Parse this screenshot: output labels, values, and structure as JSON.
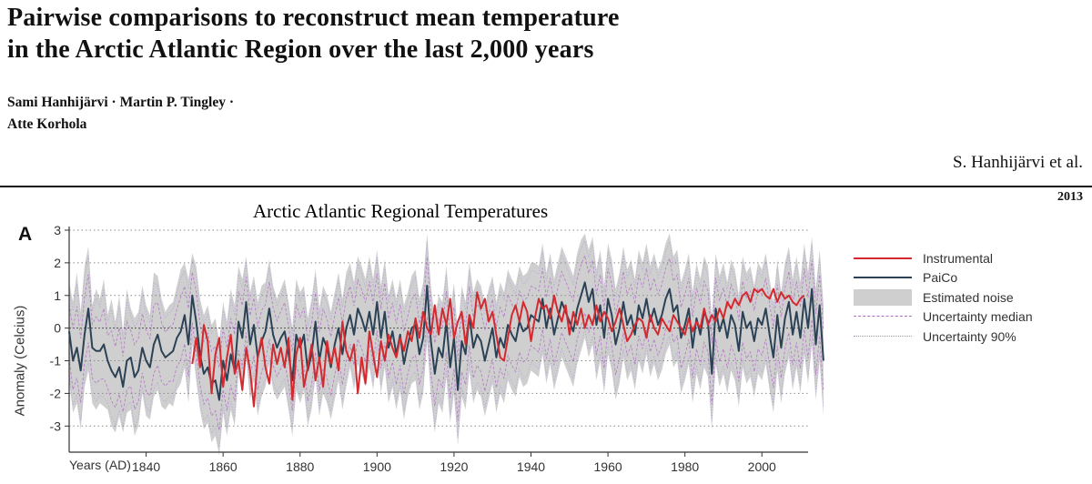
{
  "paper": {
    "title_line1": "Pairwise comparisons to reconstruct mean temperature",
    "title_line2": "in the Arctic Atlantic Region over the last 2,000 years",
    "authors_line1": "Sami Hanhijärvi · Martin P. Tingley ·",
    "authors_line2": "Atte Korhola",
    "running_head": "S. Hanhijärvi et al.",
    "year": "2013"
  },
  "figure": {
    "panel_letter": "A",
    "ylabel_text": "Anomaly (Celcius)",
    "xlabel_text": "Years (AD)"
  },
  "chart_data": {
    "type": "line",
    "title": "Arctic Atlantic Regional Temperatures",
    "xlabel": "Years (AD)",
    "ylabel": "Anomaly (Celcius)",
    "xlim": [
      1820,
      2012
    ],
    "ylim": [
      -3.8,
      3
    ],
    "x_ticks": [
      1840,
      1860,
      1880,
      1900,
      1920,
      1940,
      1960,
      1980,
      2000
    ],
    "y_ticks": [
      3,
      2,
      1,
      0,
      -1,
      -2,
      -3
    ],
    "grid": "horizontal dotted",
    "legend_position": "right",
    "legend": [
      "Instrumental",
      "PaiCo",
      "Estimated noise",
      "Uncertainty median",
      "Uncertainty 90%"
    ],
    "colors": {
      "instrumental": "#d42a2f",
      "paico": "#2b4256",
      "noise": "#cfcfcf",
      "unc_median": "#b06cc4",
      "unc_90": "#9c8ed8"
    },
    "series": [
      {
        "name": "PaiCo",
        "start_year": 1820,
        "values": [
          -0.1,
          -1.0,
          -0.6,
          -1.3,
          -0.2,
          0.6,
          -0.6,
          -0.7,
          -0.7,
          -0.5,
          -1.0,
          -1.3,
          -1.5,
          -1.2,
          -1.8,
          -1.0,
          -0.9,
          -1.5,
          -1.3,
          -0.6,
          -1.0,
          -1.2,
          -0.5,
          -0.2,
          -0.7,
          -0.9,
          -0.8,
          -0.7,
          -0.3,
          -0.1,
          0.4,
          -0.5,
          1.0,
          0.2,
          -0.8,
          -1.4,
          -1.2,
          -1.7,
          -1.6,
          -2.2,
          -1.0,
          -1.6,
          -0.8,
          -1.3,
          0.2,
          -0.3,
          0.8,
          -0.5,
          0.1,
          -0.9,
          -0.4,
          -0.1,
          0.6,
          -0.2,
          -0.6,
          -0.3,
          -0.1,
          -0.8,
          -1.6,
          -0.2,
          -0.6,
          -0.2,
          -1.3,
          -0.8,
          0.2,
          -1.0,
          -0.3,
          -0.6,
          -1.2,
          -0.5,
          0.0,
          -0.8,
          0.0,
          0.4,
          -0.2,
          0.6,
          0.3,
          -0.1,
          0.5,
          -0.2,
          0.8,
          -0.3,
          0.5,
          -0.6,
          -0.1,
          -0.8,
          -0.2,
          -1.1,
          -0.5,
          0.0,
          0.1,
          -0.8,
          -0.3,
          1.3,
          -0.4,
          -1.4,
          -0.6,
          -0.9,
          0.2,
          -1.2,
          -0.3,
          -1.9,
          -0.4,
          -0.8,
          0.4,
          -0.6,
          -0.2,
          -0.4,
          -1.0,
          -0.5,
          0.0,
          -0.9,
          -0.3,
          -0.6,
          0.1,
          -0.2,
          -0.4,
          0.2,
          -0.1,
          0.0,
          0.4,
          0.3,
          0.2,
          0.9,
          0.0,
          0.6,
          -0.2,
          0.3,
          0.8,
          0.5,
          0.2,
          -0.1,
          0.6,
          1.0,
          1.4,
          0.8,
          1.2,
          0.1,
          0.7,
          -0.3,
          0.9,
          0.4,
          -0.5,
          0.0,
          0.8,
          0.1,
          0.4,
          -0.2,
          0.7,
          0.3,
          0.9,
          0.2,
          0.6,
          0.1,
          0.4,
          0.9,
          1.2,
          0.5,
          0.7,
          -0.3,
          0.1,
          0.6,
          -0.6,
          0.3,
          -0.2,
          0.5,
          0.2,
          -1.4,
          0.6,
          -0.1,
          0.3,
          -0.3,
          0.4,
          0.1,
          -0.7,
          0.5,
          0.0,
          0.2,
          -0.4,
          0.3,
          0.1,
          0.6,
          -0.2,
          -0.9,
          0.4,
          -0.6,
          0.3,
          0.8,
          -0.2,
          0.5,
          -0.3,
          0.9,
          0.0,
          1.2,
          -0.5,
          0.7,
          -1.0
        ]
      },
      {
        "name": "Instrumental",
        "start_year": 1852,
        "values": [
          -1.1,
          -0.3,
          -1.2,
          0.1,
          -0.4,
          -2.0,
          -0.8,
          -0.3,
          -1.8,
          -0.9,
          -0.2,
          -1.4,
          -1.0,
          -1.9,
          -0.6,
          -1.3,
          -2.4,
          -0.9,
          -0.3,
          -1.2,
          -1.7,
          -0.5,
          -1.1,
          -0.6,
          -1.2,
          -0.3,
          -2.2,
          -0.8,
          -0.3,
          -1.8,
          -1.2,
          -0.5,
          -1.6,
          -0.9,
          -1.8,
          -0.4,
          -1.1,
          -0.6,
          -1.3,
          0.2,
          -0.7,
          -1.0,
          -0.5,
          -2.0,
          -0.9,
          -1.7,
          -0.1,
          -0.8,
          -1.5,
          -0.4,
          -1.0,
          -0.2,
          -0.6,
          -0.9,
          -0.3,
          -0.7,
          -0.1,
          -0.4,
          0.3,
          -0.3,
          0.5,
          0.0,
          -0.2,
          0.7,
          -0.2,
          0.6,
          0.1,
          0.9,
          -0.3,
          0.2,
          0.5,
          -0.5,
          0.4,
          0.0,
          1.1,
          0.6,
          0.9,
          0.2,
          0.5,
          -0.2,
          -0.9,
          -1.0,
          -0.3,
          0.4,
          0.7,
          0.2,
          0.8,
          0.5,
          -0.4,
          0.3,
          0.9,
          0.6,
          0.7,
          0.3,
          1.0,
          0.5,
          0.2,
          0.7,
          -0.2,
          0.5,
          0.1,
          0.6,
          0.0,
          0.4,
          0.1,
          0.7,
          0.2,
          0.5,
          0.3,
          -0.1,
          0.2,
          0.6,
          0.1,
          -0.4,
          -0.2,
          0.1,
          0.3,
          0.2,
          -0.3,
          0.4,
          0.0,
          -0.2,
          0.3,
          0.1,
          -0.1,
          0.4,
          0.2,
          0.0,
          -0.2,
          0.3,
          -0.1,
          0.2,
          0.0,
          0.6,
          0.1,
          0.4,
          0.2,
          0.6,
          0.3,
          0.8,
          0.6,
          0.9,
          0.7,
          1.0,
          1.1,
          0.8,
          1.2,
          1.1,
          1.2,
          1.0,
          0.9,
          1.2,
          0.8,
          1.1,
          0.9,
          1.0,
          0.8,
          0.7,
          0.9,
          1.0
        ]
      }
    ],
    "noise_band": {
      "start_year": 1820,
      "upper": [
        1.4,
        0.8,
        1.7,
        0.5,
        1.9,
        2.5,
        0.7,
        1.2,
        0.9,
        1.5,
        0.4,
        0.9,
        0.2,
        1.0,
        -0.1,
        1.2,
        0.6,
        0.3,
        0.5,
        1.3,
        0.7,
        0.4,
        1.7,
        1.6,
        0.9,
        0.5,
        0.7,
        0.8,
        1.3,
        1.8,
        2.0,
        1.5,
        2.3,
        1.9,
        0.9,
        0.4,
        0.7,
        0.1,
        0.3,
        -0.4,
        0.8,
        0.2,
        1.2,
        0.7,
        1.9,
        1.5,
        2.2,
        1.1,
        1.6,
        0.8,
        1.3,
        1.4,
        2.1,
        1.3,
        0.9,
        1.2,
        1.5,
        0.8,
        0.0,
        1.5,
        1.1,
        1.3,
        0.3,
        0.9,
        1.8,
        0.6,
        1.3,
        1.0,
        0.5,
        1.1,
        1.7,
        0.9,
        1.7,
        2.0,
        1.4,
        2.2,
        1.9,
        1.5,
        2.2,
        1.5,
        2.4,
        1.3,
        2.1,
        1.0,
        1.5,
        0.9,
        1.5,
        0.7,
        1.1,
        1.6,
        1.8,
        0.9,
        1.4,
        2.9,
        1.3,
        0.3,
        1.0,
        0.8,
        1.9,
        0.5,
        1.4,
        -0.2,
        1.3,
        0.8,
        2.0,
        1.1,
        1.5,
        1.3,
        0.7,
        1.2,
        1.6,
        0.8,
        1.4,
        1.1,
        1.8,
        1.5,
        1.3,
        1.9,
        1.6,
        1.7,
        2.0,
        2.0,
        1.9,
        2.6,
        1.7,
        2.3,
        1.5,
        2.0,
        2.5,
        2.2,
        1.9,
        1.6,
        2.3,
        2.7,
        2.9,
        2.4,
        2.8,
        1.8,
        2.4,
        1.3,
        2.6,
        2.1,
        1.2,
        1.7,
        2.5,
        1.8,
        2.1,
        1.5,
        2.4,
        2.0,
        2.6,
        1.9,
        2.3,
        1.8,
        2.1,
        2.6,
        2.9,
        2.2,
        2.4,
        1.4,
        1.8,
        2.3,
        1.1,
        2.0,
        1.5,
        2.2,
        1.9,
        0.3,
        2.3,
        1.6,
        2.0,
        1.4,
        2.1,
        1.8,
        1.0,
        2.2,
        1.7,
        1.9,
        1.3,
        2.0,
        1.8,
        2.3,
        1.5,
        0.8,
        2.1,
        1.1,
        2.0,
        2.5,
        1.5,
        2.2,
        1.4,
        2.6,
        1.7,
        2.8,
        1.2,
        2.4,
        0.7
      ],
      "lower": [
        -1.6,
        -2.6,
        -2.3,
        -3.1,
        -1.8,
        -1.3,
        -2.3,
        -2.5,
        -2.3,
        -2.4,
        -2.5,
        -3.0,
        -3.2,
        -2.7,
        -3.2,
        -2.6,
        -2.5,
        -3.3,
        -3.0,
        -2.0,
        -2.7,
        -2.8,
        -2.1,
        -1.9,
        -2.4,
        -2.5,
        -2.3,
        -2.4,
        -1.9,
        -1.7,
        -1.2,
        -2.3,
        -0.5,
        -1.6,
        -2.5,
        -3.1,
        -2.9,
        -3.5,
        -3.3,
        -3.9,
        -2.6,
        -3.3,
        -2.5,
        -3.0,
        -1.4,
        -2.0,
        -0.9,
        -2.2,
        -1.6,
        -2.7,
        -2.1,
        -1.8,
        -1.1,
        -1.9,
        -2.2,
        -2.0,
        -1.8,
        -2.5,
        -3.3,
        -1.9,
        -2.3,
        -1.9,
        -3.0,
        -2.5,
        -1.5,
        -2.7,
        -2.0,
        -2.3,
        -2.8,
        -2.2,
        -1.6,
        -2.5,
        -1.8,
        -1.2,
        -1.9,
        -1.1,
        -1.4,
        -1.8,
        -1.2,
        -1.9,
        -0.8,
        -2.0,
        -1.2,
        -2.3,
        -1.8,
        -2.5,
        -1.9,
        -2.8,
        -2.1,
        -1.7,
        -1.6,
        -2.5,
        -2.0,
        -0.4,
        -2.1,
        -3.2,
        -2.3,
        -2.6,
        -1.5,
        -2.9,
        -2.0,
        -3.6,
        -2.1,
        -2.5,
        -1.3,
        -2.3,
        -1.9,
        -2.1,
        -2.7,
        -2.2,
        -1.7,
        -2.6,
        -2.0,
        -2.3,
        -1.6,
        -1.9,
        -2.1,
        -1.5,
        -1.8,
        -1.7,
        -1.3,
        -1.4,
        -1.5,
        -0.8,
        -1.7,
        -1.1,
        -1.9,
        -1.4,
        -0.9,
        -1.2,
        -1.5,
        -1.8,
        -1.1,
        -0.7,
        -0.3,
        -0.9,
        -0.5,
        -1.6,
        -1.0,
        -2.0,
        -0.8,
        -1.3,
        -2.2,
        -1.7,
        -0.9,
        -1.6,
        -1.3,
        -1.9,
        -1.0,
        -1.4,
        -0.8,
        -1.5,
        -1.1,
        -1.6,
        -1.3,
        -0.8,
        -0.5,
        -1.2,
        -1.0,
        -2.0,
        -1.6,
        -1.1,
        -2.3,
        -1.4,
        -1.9,
        -1.2,
        -1.5,
        -3.1,
        -1.1,
        -1.8,
        -1.4,
        -2.0,
        -1.3,
        -1.6,
        -2.4,
        -1.2,
        -1.7,
        -1.5,
        -2.1,
        -1.4,
        -1.6,
        -1.1,
        -1.9,
        -2.6,
        -1.3,
        -2.3,
        -1.4,
        -0.9,
        -1.9,
        -1.2,
        -2.0,
        -0.8,
        -1.7,
        -0.5,
        -2.2,
        -1.0,
        -2.7
      ]
    }
  }
}
